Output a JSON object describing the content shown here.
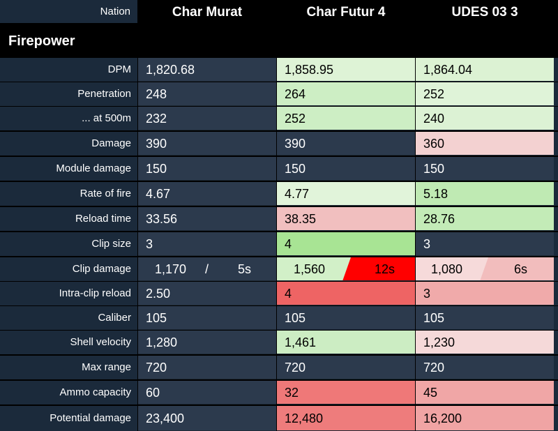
{
  "header": {
    "nation_label": "Nation",
    "columns": [
      "Char Murat",
      "Char Futur 4",
      "UDES 03 3"
    ]
  },
  "section": {
    "title": "Firepower"
  },
  "colors": {
    "neutral": "#2c3a4d",
    "label_bg": "#1b2a3b",
    "green_light": "#def3d6",
    "green_mid": "#c9eec0",
    "green_strong": "#a8e494",
    "red_light": "#f3d3d3",
    "red_mid": "#f1bcbc",
    "red_strong": "#ee6464",
    "red_max": "#ff0000"
  },
  "rows": [
    {
      "label": "DPM",
      "values": [
        "1,820.68",
        "1,858.95",
        "1,864.04"
      ]
    },
    {
      "label": "Penetration",
      "values": [
        "248",
        "264",
        "252"
      ]
    },
    {
      "label": "... at 500m",
      "values": [
        "232",
        "252",
        "240"
      ]
    },
    {
      "label": "Damage",
      "values": [
        "390",
        "390",
        "360"
      ]
    },
    {
      "label": "Module damage",
      "values": [
        "150",
        "150",
        "150"
      ]
    },
    {
      "label": "Rate of fire",
      "values": [
        "4.67",
        "4.77",
        "5.18"
      ]
    },
    {
      "label": "Reload time",
      "values": [
        "33.56",
        "38.35",
        "28.76"
      ]
    },
    {
      "label": "Clip size",
      "values": [
        "3",
        "4",
        "3"
      ]
    },
    {
      "label": "Clip damage",
      "values": [
        "1,170",
        "1,560",
        "1,080"
      ],
      "times": [
        "5s",
        "12s",
        "6s"
      ],
      "sep": "/"
    },
    {
      "label": "Intra-clip reload",
      "values": [
        "2.50",
        "4",
        "3"
      ]
    },
    {
      "label": "Caliber",
      "values": [
        "105",
        "105",
        "105"
      ]
    },
    {
      "label": "Shell velocity",
      "values": [
        "1,280",
        "1,461",
        "1,230"
      ]
    },
    {
      "label": "Max range",
      "values": [
        "720",
        "720",
        "720"
      ]
    },
    {
      "label": "Ammo capacity",
      "values": [
        "60",
        "32",
        "45"
      ]
    },
    {
      "label": "Potential damage",
      "values": [
        "23,400",
        "12,480",
        "16,200"
      ]
    }
  ]
}
